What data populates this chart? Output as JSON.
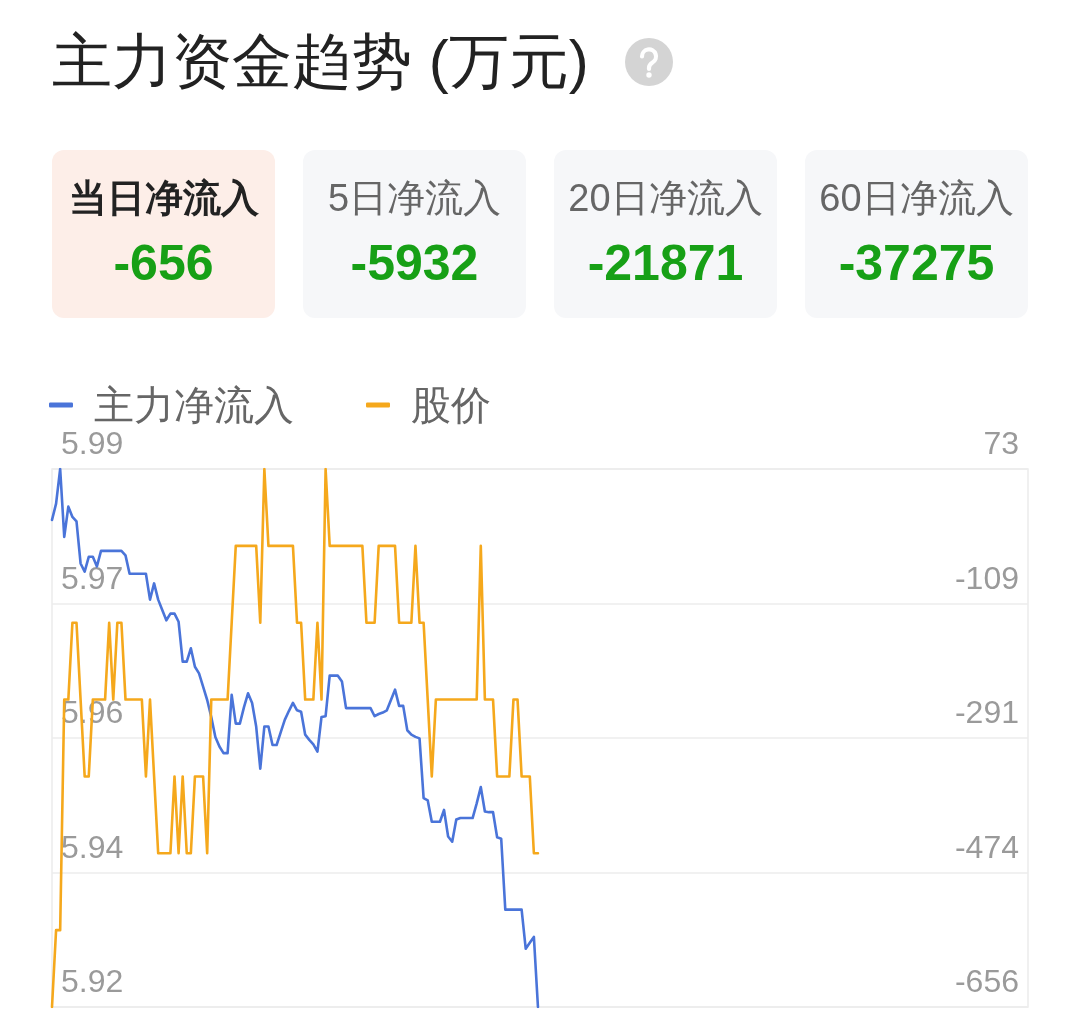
{
  "chart_data": [
    {
      "type": "other",
      "title": "主力资金趋势 (万元)",
      "categories": [
        "当日净流入",
        "5日净流入",
        "20日净流入",
        "60日净流入"
      ],
      "values": [
        -656,
        -5932,
        -21871,
        -37275
      ],
      "colors": [
        "#fdeee8",
        "#f6f7f9",
        "#f6f7f9",
        "#f6f7f9"
      ],
      "data_labels": true
    },
    {
      "type": "line",
      "categories": [
        null,
        null,
        null,
        null,
        null,
        null,
        null,
        null,
        null,
        null,
        null,
        null,
        null,
        null,
        null,
        null,
        null,
        null,
        null,
        null,
        null,
        null,
        null,
        null,
        null,
        null,
        null,
        null,
        null,
        null,
        null,
        null,
        null,
        null,
        null,
        null,
        null,
        null,
        null,
        null,
        null,
        null,
        null,
        null,
        null,
        null,
        null,
        null,
        null,
        null,
        null,
        null,
        null,
        null,
        null,
        null,
        null,
        null,
        null,
        null,
        null,
        null,
        null,
        null,
        null,
        null,
        null,
        null,
        null,
        null,
        null,
        null,
        null,
        null,
        null,
        null,
        null,
        null,
        null,
        null,
        null,
        null,
        null,
        null,
        null,
        null,
        null,
        null,
        null,
        null,
        null,
        null,
        null,
        null,
        null,
        null,
        null,
        null,
        null,
        null,
        null,
        null,
        null,
        null,
        null,
        null,
        null,
        null,
        null,
        null,
        null,
        null,
        null,
        null,
        null,
        null,
        null,
        null,
        null,
        null,
        null,
        null,
        null,
        null,
        null,
        null,
        null,
        null,
        null,
        null,
        null,
        null,
        null,
        null,
        null,
        null,
        null,
        null,
        null,
        null,
        null,
        null,
        null,
        null,
        null,
        null,
        null,
        null,
        null,
        null,
        null,
        null,
        null,
        null,
        null,
        null,
        null,
        null,
        null,
        null,
        null,
        null,
        null,
        null,
        null,
        null,
        null,
        null,
        null,
        null,
        null,
        null,
        null,
        null,
        null,
        null,
        null,
        null,
        null,
        null,
        null,
        null,
        null,
        null,
        null,
        null,
        null,
        null,
        null,
        null,
        null,
        null,
        null,
        null,
        null,
        null,
        null,
        null,
        null,
        null,
        null,
        null,
        null,
        null,
        null,
        null,
        null,
        null,
        null,
        null,
        null,
        null,
        null,
        null,
        null,
        null,
        null,
        null,
        null,
        null,
        null,
        null,
        null,
        null,
        null,
        null,
        null,
        null,
        null,
        null,
        null,
        null,
        null,
        null,
        null,
        null,
        null,
        null,
        null,
        null
      ],
      "series": [
        {
          "name": "主力净流入",
          "color": "#4a74d9",
          "axis": "y2",
          "values": [
            4,
            26,
            73,
            -19,
            22,
            8,
            2,
            -55,
            -66,
            -46,
            -46,
            -59,
            -38,
            -38,
            -38,
            -38,
            -38,
            -38,
            -44,
            -69,
            -69,
            -69,
            -69,
            -69,
            -104,
            -82,
            -104,
            -118,
            -132,
            -123,
            -123,
            -134,
            -188,
            -188,
            -170,
            -195,
            -204,
            -222,
            -240,
            -263,
            -290,
            -303,
            -312,
            -312,
            -233,
            -272,
            -272,
            -250,
            -231,
            -244,
            -276,
            -333,
            -276,
            -276,
            -301,
            -301,
            -284,
            -267,
            -255,
            -244,
            -254,
            -256,
            -287,
            -294,
            -300,
            -310,
            -263,
            -262,
            -207,
            -207,
            -207,
            -215,
            -251,
            -251,
            -251,
            -251,
            -251,
            -251,
            -251,
            -262,
            -259,
            -257,
            -254,
            -240,
            -226,
            -248,
            -248,
            -281,
            -287,
            -290,
            -292,
            -373,
            -376,
            -405,
            -405,
            -405,
            -389,
            -425,
            -432,
            -402,
            -400,
            -400,
            -400,
            -400,
            -380,
            -358,
            -391,
            -392,
            -392,
            -426,
            -428,
            -524,
            -524,
            -524,
            -524,
            -524,
            -577,
            -569,
            -561,
            -656,
            null,
            null,
            null,
            null,
            null,
            null,
            null,
            null,
            null,
            null,
            null,
            null,
            null,
            null,
            null,
            null,
            null,
            null,
            null,
            null,
            null,
            null,
            null,
            null,
            null,
            null,
            null,
            null,
            null,
            null,
            null,
            null,
            null,
            null,
            null,
            null,
            null,
            null,
            null,
            null,
            null,
            null,
            null,
            null,
            null,
            null,
            null,
            null,
            null,
            null,
            null,
            null,
            null,
            null,
            null,
            null,
            null,
            null,
            null,
            null,
            null,
            null,
            null,
            null,
            null,
            null,
            null,
            null,
            null,
            null,
            null,
            null,
            null,
            null,
            null,
            null,
            null,
            null,
            null,
            null,
            null,
            null,
            null,
            null,
            null,
            null,
            null,
            null,
            null,
            null,
            null,
            null,
            null,
            null,
            null,
            null,
            null,
            null,
            null,
            null,
            null,
            null,
            null,
            null,
            null,
            null,
            null,
            null,
            null,
            null,
            null,
            null,
            null,
            null,
            null,
            null,
            null,
            null,
            null,
            null
          ]
        },
        {
          "name": "股价",
          "color": "#f5a81c",
          "values": [
            5.92,
            5.93,
            5.93,
            5.96,
            5.96,
            5.97,
            5.97,
            5.96,
            5.95,
            5.95,
            5.96,
            5.96,
            5.96,
            5.96,
            5.97,
            5.96,
            5.97,
            5.97,
            5.96,
            5.96,
            5.96,
            5.96,
            5.96,
            5.95,
            5.96,
            5.95,
            5.94,
            5.94,
            5.94,
            5.94,
            5.95,
            5.94,
            5.95,
            5.94,
            5.94,
            5.95,
            5.95,
            5.95,
            5.94,
            5.96,
            5.96,
            5.96,
            5.96,
            5.96,
            5.97,
            5.98,
            5.98,
            5.98,
            5.98,
            5.98,
            5.98,
            5.97,
            5.99,
            5.98,
            5.98,
            5.98,
            5.98,
            5.98,
            5.98,
            5.98,
            5.97,
            5.97,
            5.96,
            5.96,
            5.96,
            5.97,
            5.96,
            5.99,
            5.98,
            5.98,
            5.98,
            5.98,
            5.98,
            5.98,
            5.98,
            5.98,
            5.98,
            5.97,
            5.97,
            5.97,
            5.98,
            5.98,
            5.98,
            5.98,
            5.98,
            5.97,
            5.97,
            5.97,
            5.97,
            5.98,
            5.97,
            5.97,
            5.96,
            5.95,
            5.96,
            5.96,
            5.96,
            5.96,
            5.96,
            5.96,
            5.96,
            5.96,
            5.96,
            5.96,
            5.96,
            5.98,
            5.96,
            5.96,
            5.96,
            5.95,
            5.95,
            5.95,
            5.95,
            5.96,
            5.96,
            5.95,
            5.95,
            5.95,
            5.94,
            5.94,
            null,
            null,
            null,
            null,
            null,
            null,
            null,
            null,
            null,
            null,
            null,
            null,
            null,
            null,
            null,
            null,
            null,
            null,
            null,
            null,
            null,
            null,
            null,
            null,
            null,
            null,
            null,
            null,
            null,
            null,
            null,
            null,
            null,
            null,
            null,
            null,
            null,
            null,
            null,
            null,
            null,
            null,
            null,
            null,
            null,
            null,
            null,
            null,
            null,
            null,
            null,
            null,
            null,
            null,
            null,
            null,
            null,
            null,
            null,
            null,
            null,
            null,
            null,
            null,
            null,
            null,
            null,
            null,
            null,
            null,
            null,
            null,
            null,
            null,
            null,
            null,
            null,
            null,
            null,
            null,
            null,
            null,
            null,
            null,
            null,
            null,
            null,
            null,
            null,
            null,
            null,
            null,
            null,
            null,
            null,
            null,
            null,
            null,
            null,
            null,
            null,
            null,
            null,
            null,
            null,
            null,
            null,
            null,
            null,
            null,
            null,
            null,
            null,
            null,
            null,
            null,
            null,
            null,
            null,
            null
          ]
        }
      ],
      "ylim": [
        5.92,
        5.99
      ],
      "yticks": [
        5.92,
        {
          "value": 5.9375,
          "label": "5.94"
        },
        {
          "value": 5.955,
          "label": "5.96"
        },
        {
          "value": 5.9725,
          "label": "5.97"
        },
        5.99
      ],
      "y2lim": [
        -656,
        73
      ],
      "y2ticks": [
        -656,
        {
          "value": -473.75,
          "label": "-474"
        },
        {
          "value": -291.5,
          "label": "-291"
        },
        {
          "value": -109.25,
          "label": "-109"
        },
        73
      ],
      "grid": "y",
      "legend": "top left",
      "marker": "none"
    }
  ]
}
